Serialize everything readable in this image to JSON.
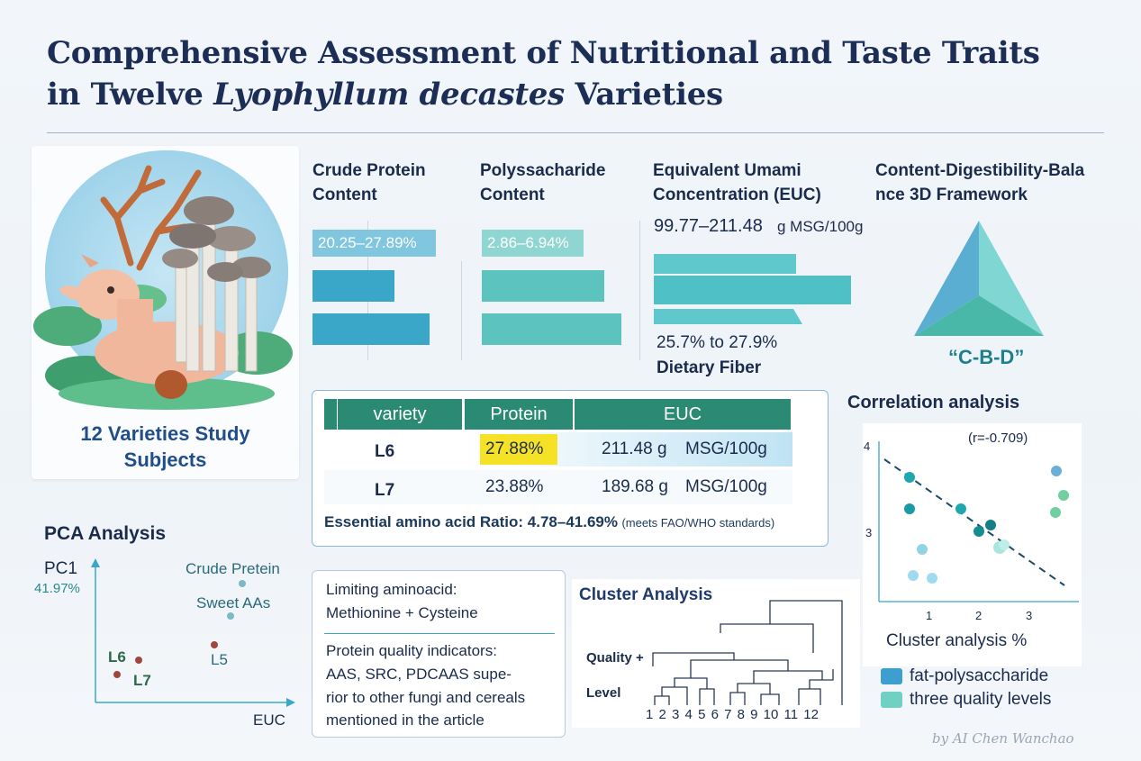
{
  "title": {
    "line1": "Comprehensive Assessment of Nutritional and Taste Traits",
    "line2_pre": "in Twelve ",
    "line2_italic": "Lyophyllum decastes",
    "line2_post": " Varieties"
  },
  "illustration": {
    "caption_line1": "12 Varieties Study",
    "caption_line2": "Subjects"
  },
  "crude_protein": {
    "heading_line1": "Crude Protein",
    "heading_line2": "Content",
    "range_label": "20.25–27.89%",
    "color": "#3aa7c9"
  },
  "polysaccharide": {
    "heading_line1": "Polyssacharide",
    "heading_line2": "Content",
    "range_label": "2.86–6.94%",
    "color": "#5cc3bf"
  },
  "euc": {
    "heading_line1": "Equivalent Umami",
    "heading_line2": "Concentration (EUC)",
    "range_value": "99.77–211.48",
    "range_unit": "g MSG/100g",
    "fiber_range": "25.7% to 27.9%",
    "fiber_label": "Dietary Fiber",
    "color": "#4fc0c6"
  },
  "framework": {
    "heading_line1": "Content-Digestibility-Bala",
    "heading_line2": "nce 3D Framework",
    "label": "“C-B-D”",
    "colors": [
      "#5aaed1",
      "#7fd6d3",
      "#49b8a8"
    ]
  },
  "table": {
    "headers": [
      "variety",
      "Protein",
      "EUC"
    ],
    "rows": [
      {
        "variety": "L6",
        "protein": "27.88%",
        "euc_value": "211.48 g",
        "euc_unit": "MSG/100g"
      },
      {
        "variety": "L7",
        "protein": "23.88%",
        "euc_value": "189.68 g",
        "euc_unit": "MSG/100g"
      }
    ],
    "footnote_main": "Essential amino acid Ratio: 4.78–41.69%",
    "footnote_small": "(meets FAO/WHO standards)",
    "header_color": "#2a8a74",
    "highlight_color": "#f5e227"
  },
  "pca": {
    "title": "PCA Analysis",
    "y_label": "PC1",
    "y_percent": "41.97%",
    "x_label": "EUC",
    "points": [
      {
        "label": "Crude Pretein"
      },
      {
        "label": "Sweet AAs"
      },
      {
        "label": "L6"
      },
      {
        "label": "L7"
      },
      {
        "label": "L5"
      }
    ]
  },
  "limiting": {
    "line1": "Limiting aminoacid:",
    "line2": "Methionine + Cysteine",
    "line3": "Protein quality indicators:",
    "line4": "AAS, SRC, PDCAAS supe-",
    "line5": "rior to other fungi and cereals",
    "line6": "mentioned in the article"
  },
  "cluster": {
    "title": "Cluster Analysis",
    "label1": "Quality +",
    "label2": "Level",
    "leaves": [
      "1",
      "2",
      "3",
      "4",
      "5",
      "6",
      "7",
      "8",
      "9",
      "10",
      "11",
      "12"
    ]
  },
  "correlation": {
    "title": "Correlation analysis",
    "r_label": "(r=-0.709)",
    "y_ticks": [
      "4",
      "3"
    ],
    "x_ticks": [
      "1",
      "2",
      "3"
    ],
    "x_label": "Cluster analysis  %",
    "legend": [
      {
        "label": "fat-polysaccharide",
        "color": "#3e9fcf"
      },
      {
        "label": "three quality levels",
        "color": "#6fd0c3"
      }
    ]
  },
  "credit": "by AI   Chen Wanchao"
}
